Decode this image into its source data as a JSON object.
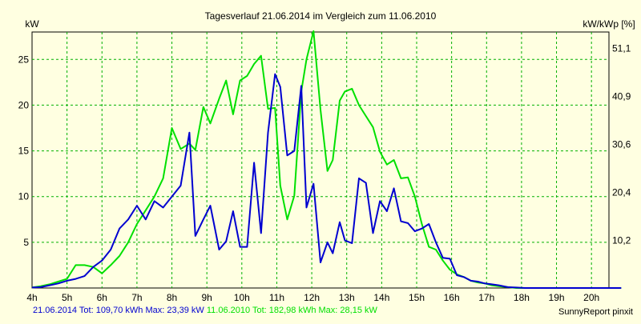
{
  "chart_data": {
    "type": "line",
    "title": "Tagesverlauf 21.06.2014 im Vergleich zum 11.06.2010",
    "ylabel_left": "kW",
    "ylabel_right": "kW/kWp [%]",
    "ylim": [
      0,
      28
    ],
    "grid": true,
    "x_ticks": [
      "4h",
      "5h",
      "6h",
      "7h",
      "8h",
      "9h",
      "10h",
      "11h",
      "12h",
      "13h",
      "14h",
      "15h",
      "16h",
      "17h",
      "18h",
      "19h",
      "20h"
    ],
    "y_ticks_left": [
      "5",
      "10",
      "15",
      "20",
      "25"
    ],
    "y_ticks_right": [
      "10,2",
      "20,4",
      "30,6",
      "40,9",
      "51,1"
    ],
    "series": [
      {
        "name": "21.06.2014",
        "color": "#0000d0",
        "x": [
          4.0,
          4.25,
          4.5,
          4.75,
          5.0,
          5.25,
          5.5,
          5.75,
          6.0,
          6.25,
          6.5,
          6.75,
          7.0,
          7.25,
          7.5,
          7.75,
          8.0,
          8.25,
          8.5,
          8.67,
          8.9,
          9.1,
          9.35,
          9.55,
          9.75,
          9.95,
          10.15,
          10.35,
          10.55,
          10.75,
          10.95,
          11.1,
          11.3,
          11.5,
          11.7,
          11.85,
          12.05,
          12.25,
          12.45,
          12.6,
          12.8,
          12.95,
          13.15,
          13.35,
          13.55,
          13.75,
          13.95,
          14.15,
          14.35,
          14.55,
          14.75,
          14.95,
          15.15,
          15.35,
          15.55,
          15.75,
          15.95,
          16.15,
          16.35,
          16.55,
          16.75,
          16.95,
          17.15,
          17.35,
          17.6,
          17.85,
          18.1,
          18.35,
          18.6,
          18.85,
          19.1,
          19.35,
          19.6,
          19.85,
          20.1,
          20.35,
          20.6,
          20.85
        ],
        "y": [
          0.05,
          0.1,
          0.3,
          0.5,
          0.8,
          1.0,
          1.3,
          2.3,
          3.0,
          4.2,
          6.5,
          7.5,
          9.0,
          7.5,
          9.5,
          8.8,
          10.0,
          11.2,
          17.0,
          5.7,
          7.5,
          9.0,
          4.2,
          5.1,
          8.4,
          4.5,
          4.5,
          13.7,
          6.0,
          17.0,
          23.4,
          22.0,
          14.5,
          15.0,
          22.1,
          8.8,
          11.4,
          2.8,
          5.0,
          3.8,
          7.2,
          5.2,
          4.9,
          12.0,
          11.5,
          6.0,
          9.5,
          8.4,
          10.9,
          7.3,
          7.1,
          6.2,
          6.5,
          7.0,
          5.0,
          3.3,
          3.2,
          1.4,
          1.2,
          0.8,
          0.7,
          0.5,
          0.4,
          0.3,
          0.1,
          0.05,
          0.0,
          0.0,
          0.0,
          0.0,
          0.0,
          0.0,
          0.0,
          0.0,
          0.0,
          0.0,
          0.0,
          0.0
        ]
      },
      {
        "name": "11.06.2010",
        "color": "#00e000",
        "x": [
          4.0,
          4.25,
          4.5,
          4.75,
          5.0,
          5.25,
          5.5,
          5.75,
          6.0,
          6.25,
          6.5,
          6.75,
          7.0,
          7.25,
          7.5,
          7.75,
          8.0,
          8.25,
          8.5,
          8.67,
          8.9,
          9.1,
          9.35,
          9.55,
          9.75,
          9.95,
          10.15,
          10.35,
          10.55,
          10.75,
          10.95,
          11.1,
          11.3,
          11.5,
          11.7,
          11.85,
          12.05,
          12.25,
          12.45,
          12.6,
          12.8,
          12.95,
          13.15,
          13.35,
          13.55,
          13.75,
          13.95,
          14.15,
          14.35,
          14.55,
          14.75,
          14.95,
          15.15,
          15.35,
          15.55,
          15.75,
          15.95,
          16.15,
          16.35,
          16.55,
          16.75,
          16.95,
          17.15,
          17.35,
          17.6,
          17.85,
          18.1,
          18.35,
          18.6,
          18.85,
          19.1,
          19.35,
          19.6,
          19.85,
          20.1,
          20.35,
          20.6,
          20.85
        ],
        "y": [
          0.05,
          0.2,
          0.4,
          0.7,
          1.0,
          2.5,
          2.5,
          2.3,
          1.6,
          2.5,
          3.5,
          5.0,
          7.0,
          8.5,
          10.0,
          12.0,
          17.5,
          15.2,
          15.8,
          15.1,
          19.8,
          18.0,
          20.7,
          22.7,
          19.0,
          22.7,
          23.2,
          24.5,
          25.4,
          19.6,
          19.7,
          11.2,
          7.5,
          10.1,
          21.5,
          25.0,
          28.1,
          19.5,
          12.8,
          14.0,
          20.5,
          21.5,
          21.8,
          20.0,
          18.8,
          17.6,
          14.9,
          13.5,
          14.0,
          12.0,
          12.1,
          10.0,
          7.0,
          4.5,
          4.2,
          3.0,
          2.0,
          1.5,
          1.2,
          0.8,
          0.6,
          0.5,
          0.3,
          0.2,
          0.1,
          0.0,
          0.0,
          0.0,
          0.0,
          0.0,
          0.0,
          0.0,
          0.0,
          0.0,
          0.0,
          0.0,
          0.0,
          0.0
        ]
      }
    ]
  },
  "footer": {
    "series1_label": "21.06.2014 Tot: 109,70 kWh Max: 23,39 kW",
    "series2_label": "11.06.2010 Tot: 182,98 kWh Max: 28,15 kW",
    "credit": "SunnyReport pinxit",
    "series1_color": "#0000d0",
    "series2_color": "#00e000"
  }
}
